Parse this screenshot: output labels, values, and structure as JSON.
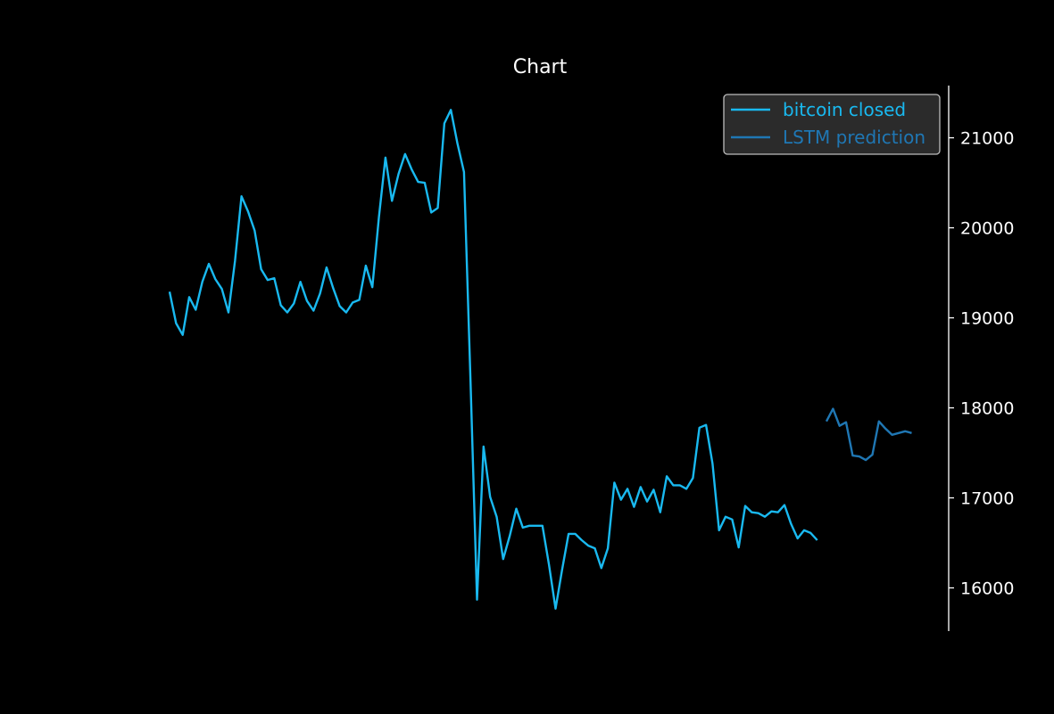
{
  "chart_data": {
    "type": "line",
    "title": "Chart",
    "xlabel": "",
    "ylabel": "",
    "ylim": [
      15520,
      21580
    ],
    "xlim": [
      -25,
      160
    ],
    "x_ticks_visible": false,
    "y_axis_side": "right",
    "y_ticks": [
      16000,
      17000,
      18000,
      19000,
      20000,
      21000
    ],
    "y_tick_labels": [
      "16000",
      "17000",
      "18000",
      "19000",
      "20000",
      "21000"
    ],
    "grid": false,
    "legend": {
      "placement": "top-right",
      "entries": [
        "bitcoin closed",
        "LSTM prediction"
      ]
    },
    "background_color": "#000000",
    "text_color": "#ffffff",
    "series": [
      {
        "name": "bitcoin closed",
        "color": "#19b9f0",
        "x": [
          0,
          1,
          2,
          3,
          4,
          5,
          6,
          7,
          8,
          9,
          10,
          11,
          12,
          13,
          14,
          15,
          16,
          17,
          18,
          19,
          20,
          21,
          22,
          23,
          24,
          25,
          26,
          27,
          28,
          29,
          30,
          31,
          32,
          33,
          34,
          35,
          36,
          37,
          38,
          39,
          40,
          41,
          42,
          43,
          44,
          45,
          46,
          47,
          48,
          49,
          50,
          51,
          52,
          53,
          54,
          55,
          56,
          57,
          58,
          59,
          60,
          61,
          62,
          63,
          64,
          65,
          66,
          67,
          68,
          69,
          70,
          71,
          72,
          73,
          74,
          75,
          76,
          77,
          78,
          79,
          80,
          81,
          82,
          83,
          84,
          85,
          86,
          87,
          88,
          89,
          90,
          91,
          92,
          93,
          94,
          95,
          96,
          97,
          98,
          99,
          100
        ],
        "values": [
          19290,
          18940,
          18810,
          19230,
          19090,
          19400,
          19600,
          19430,
          19320,
          19060,
          19630,
          20350,
          20180,
          19970,
          19540,
          19420,
          19440,
          19140,
          19060,
          19160,
          19400,
          19190,
          19080,
          19270,
          19560,
          19330,
          19130,
          19060,
          19170,
          19200,
          19580,
          19340,
          20120,
          20780,
          20300,
          20600,
          20820,
          20650,
          20510,
          20500,
          20170,
          20220,
          21160,
          21310,
          20940,
          20620,
          18300,
          15870,
          17570,
          17010,
          16790,
          16320,
          16580,
          16880,
          16670,
          16690,
          16690,
          16690,
          16260,
          15770,
          16200,
          16600,
          16600,
          16530,
          16470,
          16440,
          16220,
          16440,
          17170,
          16980,
          17100,
          16900,
          17120,
          16960,
          17090,
          16840,
          17240,
          17140,
          17140,
          17100,
          17220,
          17780,
          17810,
          17380,
          16640,
          16790,
          16760,
          16450,
          16910,
          16840,
          16830,
          16790,
          16850,
          16840,
          16920,
          16710,
          16550,
          16640,
          16610,
          16530,
          null
        ],
        "visible_points": 100
      },
      {
        "name": "LSTM prediction",
        "color": "#1f77b4",
        "x": [
          100,
          101,
          102,
          103,
          104,
          105,
          106,
          107,
          108,
          109,
          110,
          111,
          112,
          113
        ],
        "values": [
          17850,
          17990,
          17800,
          17840,
          17470,
          17460,
          17420,
          17480,
          17850,
          17770,
          17700,
          17720,
          17740,
          17720
        ]
      }
    ]
  }
}
